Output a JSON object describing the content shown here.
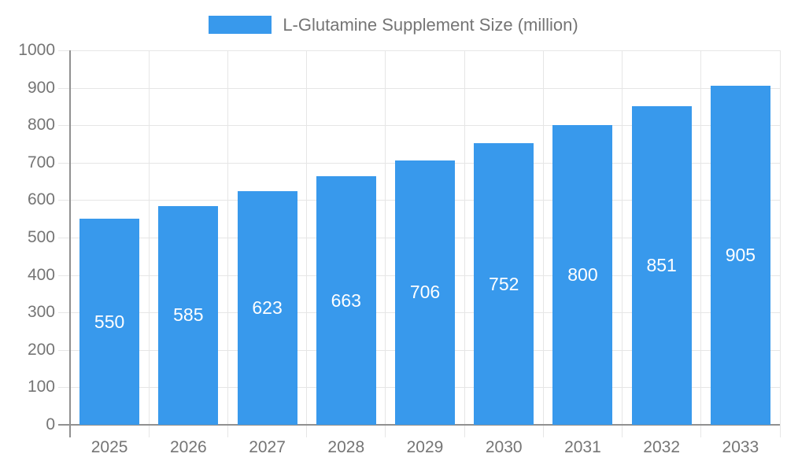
{
  "legend": {
    "label": "L-Glutamine Supplement Size (million)"
  },
  "chart_data": {
    "type": "bar",
    "title": "L-Glutamine Supplement Size (million)",
    "categories": [
      "2025",
      "2026",
      "2027",
      "2028",
      "2029",
      "2030",
      "2031",
      "2032",
      "2033"
    ],
    "values": [
      550,
      585,
      623,
      663,
      706,
      752,
      800,
      851,
      905
    ],
    "xlabel": "",
    "ylabel": "",
    "ylim": [
      0,
      1000
    ],
    "yticks": [
      0,
      100,
      200,
      300,
      400,
      500,
      600,
      700,
      800,
      900,
      1000
    ],
    "grid": true,
    "legend_position": "top-center",
    "value_labels": "inside-center",
    "colors": {
      "bar": "#3899EC",
      "value_label": "#FFFFFF",
      "axis_text": "#757575",
      "grid_line": "#E6E6E6",
      "axis_line": "#909090",
      "background": "#FFFFFF"
    }
  }
}
